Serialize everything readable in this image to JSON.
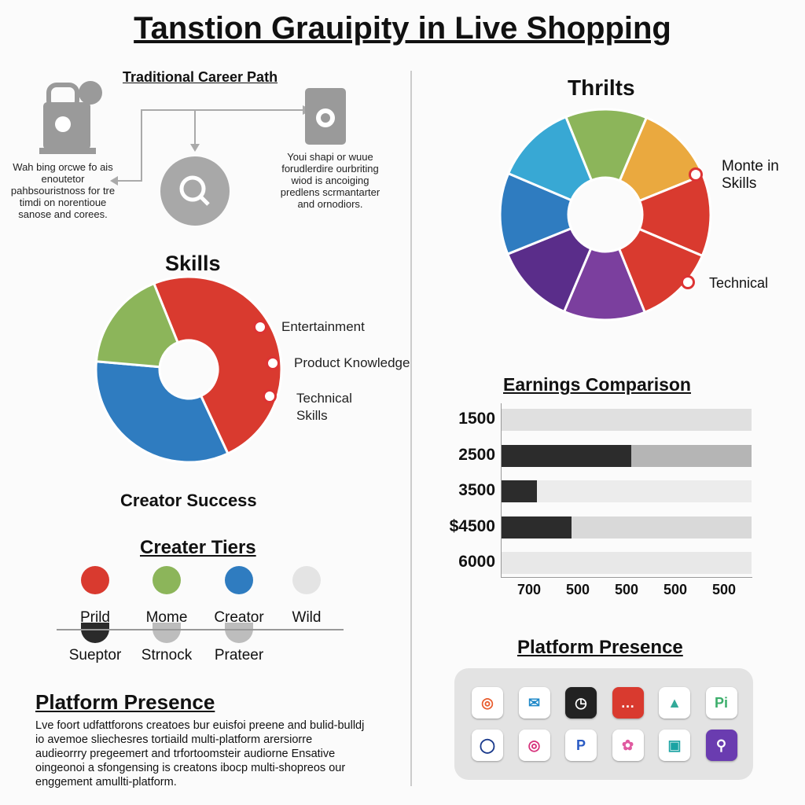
{
  "title": "Tanstion Grauipity in Live Shopping",
  "career": {
    "title": "Traditional Career Path",
    "left_text": "Wah bing orcwe fo ais enoutetor pahbsouristnoss for tre timdi on norentioue sanose and corees.",
    "right_text": "Youi shapi or wuue forudlerdire ourbriting wiod is ancoiging predlens scrmantarter and ornodiors."
  },
  "skills": {
    "title": "Skills",
    "labels": [
      "Entertainment",
      "Product Knowledge",
      "Technical Skills"
    ],
    "footer": "Creator Success",
    "segments": [
      {
        "color": "#d93a2f",
        "start": -112,
        "end": 65
      },
      {
        "color": "#2f7cc0",
        "start": 65,
        "end": 185
      },
      {
        "color": "#8cb55a",
        "start": 185,
        "end": 248
      }
    ]
  },
  "tiers": {
    "title": "Creater Tiers",
    "items": [
      {
        "label": "Prild",
        "color": "#d93a2f"
      },
      {
        "label": "Mome",
        "color": "#8cb55a"
      },
      {
        "label": "Creator",
        "color": "#2f7cc0"
      },
      {
        "label": "Wild",
        "color": "#e4e4e4"
      }
    ],
    "items2": [
      {
        "label": "Sueptor",
        "color": "#2a2a2a"
      },
      {
        "label": "Strnock",
        "color": "#bdbdbd"
      },
      {
        "label": "Prateer",
        "color": "#bdbdbd"
      }
    ]
  },
  "platform_left": {
    "title": "Platform Presence",
    "text": "Lve foort udfattforons creatoes bur euisfoi preene and bulid-bulldj io avemoe sliechesres tortiaild multi-platform arersiorre audieorrry pregeemert and trfortoomsteir audiorne Ensative oingeonoi a sfongensing is creatons ibocp multi-shopreos our enggement amullti-platform."
  },
  "thrilts": {
    "title": "Thrilts",
    "labels": [
      "Monte in Skills",
      "Technical"
    ],
    "colors": [
      "#8cb55a",
      "#eaa93f",
      "#d93a2f",
      "#d93a2f",
      "#7b3f9e",
      "#5a2d8a",
      "#2f7cc0",
      "#38a8d4"
    ]
  },
  "chart_data": {
    "type": "bar",
    "title": "Earnings Comparison",
    "categories": [
      "1500",
      "2500",
      "3500",
      "$4500",
      "6000"
    ],
    "values": [
      0,
      0.52,
      0.14,
      0.28,
      0
    ],
    "x_ticks": [
      "700",
      "500",
      "500",
      "500",
      "500"
    ],
    "track_colors": [
      "#e0e0e0",
      "#b5b5b5",
      "#ececec",
      "#d9d9d9",
      "#e8e8e8"
    ]
  },
  "platform_right": {
    "title": "Platform Presence",
    "apps": [
      {
        "icon": "camera-icon",
        "glyph": "◎",
        "color": "#e85d2f"
      },
      {
        "icon": "mail-icon",
        "glyph": "✉",
        "color": "#1e88c8"
      },
      {
        "icon": "clock-icon",
        "glyph": "◷",
        "color": "#fff",
        "bg": "#222"
      },
      {
        "icon": "chat-icon",
        "glyph": "…",
        "color": "#fff",
        "bg": "#d93a2f"
      },
      {
        "icon": "photo-icon",
        "glyph": "▲",
        "color": "#3a9"
      },
      {
        "icon": "pi-icon",
        "glyph": "Pi",
        "color": "#3cae6b"
      },
      {
        "icon": "ring-icon",
        "glyph": "◯",
        "color": "#1a3a8c"
      },
      {
        "icon": "instagram-icon",
        "glyph": "◎",
        "color": "#d6307a"
      },
      {
        "icon": "p-icon",
        "glyph": "P",
        "color": "#2a5bc4"
      },
      {
        "icon": "flower-icon",
        "glyph": "✿",
        "color": "#e05aa0"
      },
      {
        "icon": "image-icon",
        "glyph": "▣",
        "color": "#1aa3a3"
      },
      {
        "icon": "link-icon",
        "glyph": "⚲",
        "color": "#fff",
        "bg": "#6a3cb0"
      }
    ]
  }
}
